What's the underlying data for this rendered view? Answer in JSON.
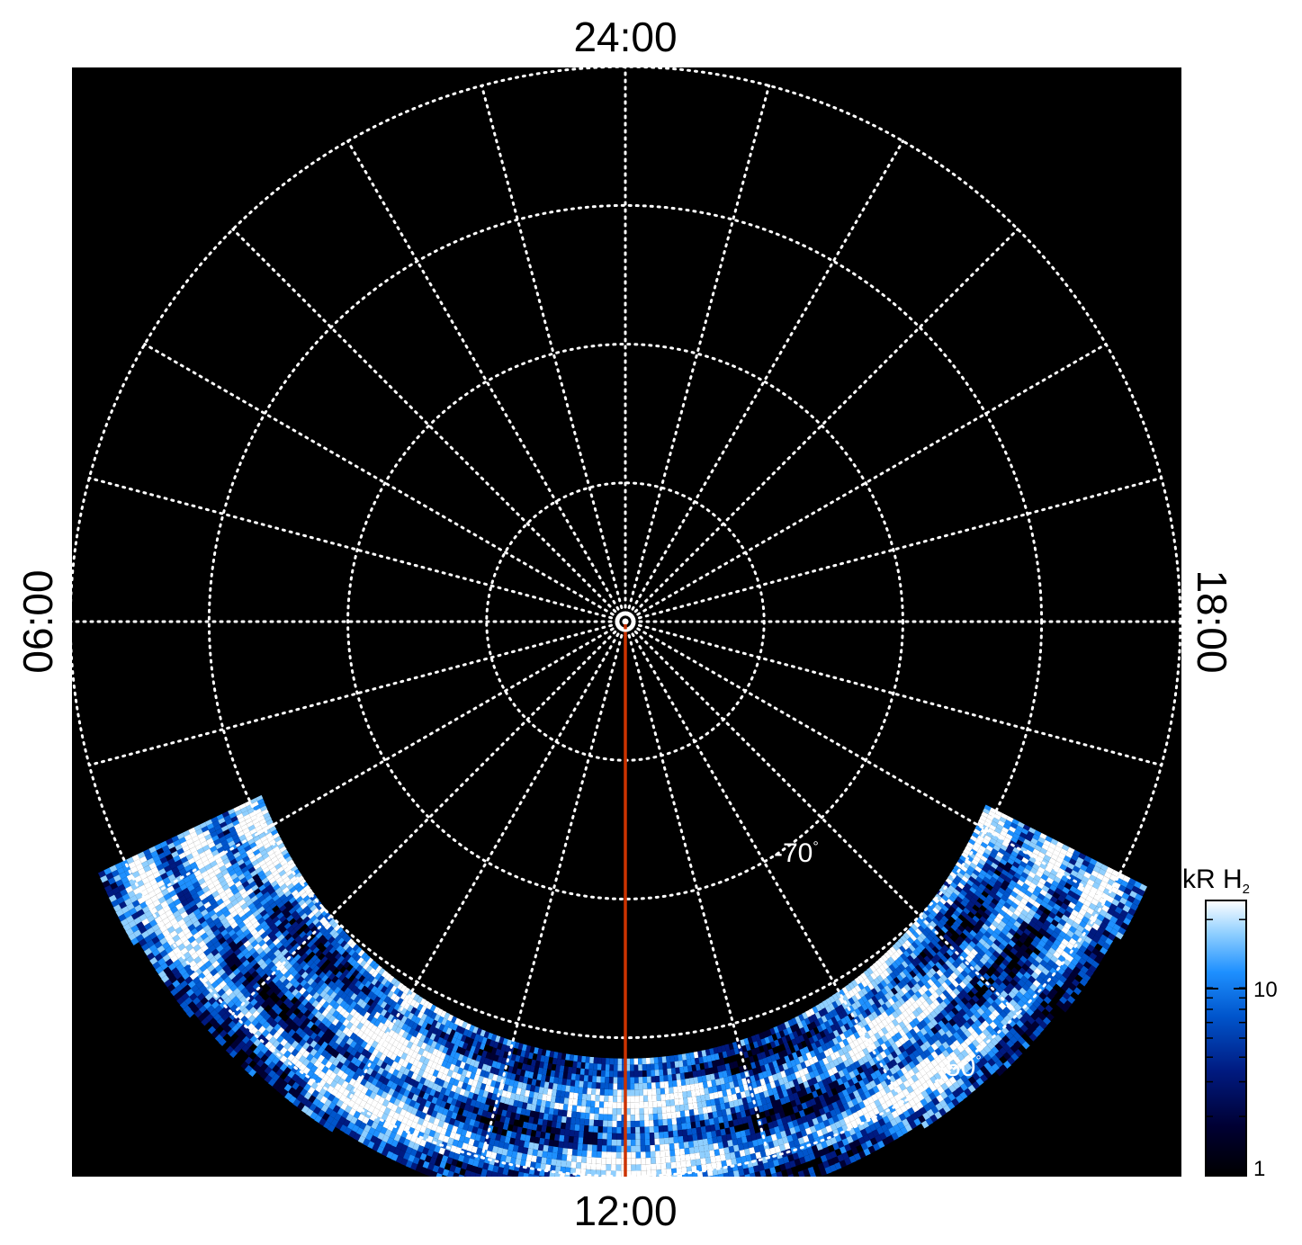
{
  "chart_data": {
    "type": "heatmap",
    "projection": "polar",
    "hemisphere": "south",
    "local_time_labels": {
      "top": "24:00",
      "left": "06:00",
      "right": "18:00",
      "bottom": "12:00"
    },
    "latitude_rings_deg": [
      -90,
      -80,
      -70,
      -60,
      -50
    ],
    "latitude_labels": [
      {
        "text": "-70",
        "deg_symbol": "°",
        "lat": -70
      },
      {
        "text": "-50",
        "deg_symbol": "°",
        "lat": -50
      }
    ],
    "meridian_spacing_hours": 1,
    "highlight_meridian": {
      "local_time": "12:00",
      "color": "#cc3300"
    },
    "coverage": {
      "lat_min": -48,
      "lat_max": -60,
      "local_time_start_hours": 7.7,
      "local_time_end_hours": 16.2
    },
    "colorbar": {
      "title": "kR H",
      "title_subscript": "2",
      "scale": "log",
      "min": 1,
      "max": 25,
      "ticks": [
        {
          "value": 1,
          "label": "1"
        },
        {
          "value": 10,
          "label": "10"
        }
      ],
      "colors": [
        "#000000",
        "#000033",
        "#001a80",
        "#0055cc",
        "#1e90ff",
        "#8fcfff",
        "#ffffff"
      ]
    },
    "grid": true,
    "background": "#000000"
  }
}
